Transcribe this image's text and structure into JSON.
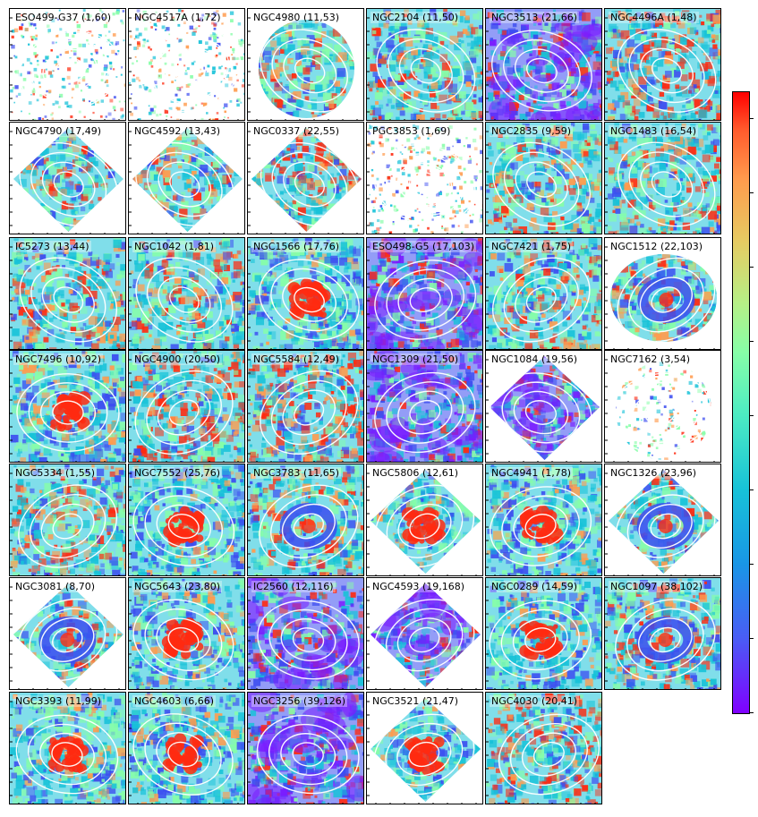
{
  "figure": {
    "panels": [
      {
        "name": "ESO499-G37",
        "values": "(1,60)",
        "style": "sparse",
        "shape": "square"
      },
      {
        "name": "NGC4517A",
        "values": "(1,72)",
        "style": "sparse",
        "shape": "square"
      },
      {
        "name": "NGC4980",
        "values": "(11,53)",
        "style": "cyan",
        "shape": "oval"
      },
      {
        "name": "NGC2104",
        "values": "(11,50)",
        "style": "cyan",
        "shape": "square"
      },
      {
        "name": "NGC3513",
        "values": "(21,66)",
        "style": "blue",
        "shape": "square"
      },
      {
        "name": "NGC4496A",
        "values": "(1,48)",
        "style": "mixed",
        "shape": "square"
      },
      {
        "name": "NGC4790",
        "values": "(17,49)",
        "style": "cyan",
        "shape": "diamond"
      },
      {
        "name": "NGC4592",
        "values": "(13,43)",
        "style": "cyan",
        "shape": "diamond"
      },
      {
        "name": "NGC0337",
        "values": "(22,55)",
        "style": "mixed",
        "shape": "diamond"
      },
      {
        "name": "PGC3853",
        "values": "(1,69)",
        "style": "sparse",
        "shape": "square"
      },
      {
        "name": "NGC2835",
        "values": "(9,59)",
        "style": "cyan",
        "shape": "square"
      },
      {
        "name": "NGC1483",
        "values": "(16,54)",
        "style": "cyan",
        "shape": "square"
      },
      {
        "name": "IC5273",
        "values": "(13,44)",
        "style": "cyan",
        "shape": "square"
      },
      {
        "name": "NGC1042",
        "values": "(1,81)",
        "style": "cyan",
        "shape": "square"
      },
      {
        "name": "NGC1566",
        "values": "(17,76)",
        "style": "redcore",
        "shape": "square"
      },
      {
        "name": "ESO498-G5",
        "values": "(17,103)",
        "style": "blue",
        "shape": "square"
      },
      {
        "name": "NGC7421",
        "values": "(1,75)",
        "style": "cyan",
        "shape": "square"
      },
      {
        "name": "NGC1512",
        "values": "(22,103)",
        "style": "ring",
        "shape": "blob"
      },
      {
        "name": "NGC7496",
        "values": "(10,92)",
        "style": "redcore",
        "shape": "square"
      },
      {
        "name": "NGC4900",
        "values": "(20,50)",
        "style": "mixed",
        "shape": "square"
      },
      {
        "name": "NGC5584",
        "values": "(12,49)",
        "style": "mixed",
        "shape": "square"
      },
      {
        "name": "NGC1309",
        "values": "(21,50)",
        "style": "blue",
        "shape": "square"
      },
      {
        "name": "NGC1084",
        "values": "(19,56)",
        "style": "blue",
        "shape": "diamond"
      },
      {
        "name": "NGC7162",
        "values": "(3,54)",
        "style": "sparse",
        "shape": "oval"
      },
      {
        "name": "NGC5334",
        "values": "(1,55)",
        "style": "cyan",
        "shape": "square"
      },
      {
        "name": "NGC7552",
        "values": "(25,76)",
        "style": "redcore",
        "shape": "square"
      },
      {
        "name": "NGC3783",
        "values": "(11,65)",
        "style": "ring",
        "shape": "square"
      },
      {
        "name": "NGC5806",
        "values": "(12,61)",
        "style": "redcore",
        "shape": "diamond"
      },
      {
        "name": "NGC4941",
        "values": "(1,78)",
        "style": "redcore",
        "shape": "square"
      },
      {
        "name": "NGC1326",
        "values": "(23,96)",
        "style": "ring",
        "shape": "diamond"
      },
      {
        "name": "NGC3081",
        "values": "(8,70)",
        "style": "ring",
        "shape": "diamond"
      },
      {
        "name": "NGC5643",
        "values": "(23,80)",
        "style": "redcore",
        "shape": "square"
      },
      {
        "name": "IC2560",
        "values": "(12,116)",
        "style": "blue",
        "shape": "square"
      },
      {
        "name": "NGC4593",
        "values": "(19,168)",
        "style": "blue",
        "shape": "diamond"
      },
      {
        "name": "NGC0289",
        "values": "(14,59)",
        "style": "redcore",
        "shape": "square"
      },
      {
        "name": "NGC1097",
        "values": "(38,102)",
        "style": "ring",
        "shape": "square"
      },
      {
        "name": "NGC3393",
        "values": "(11,99)",
        "style": "redcore",
        "shape": "square"
      },
      {
        "name": "NGC4603",
        "values": "(6,66)",
        "style": "redcore",
        "shape": "square"
      },
      {
        "name": "NGC3256",
        "values": "(39,126)",
        "style": "blue",
        "shape": "square"
      },
      {
        "name": "NGC3521",
        "values": "(21,47)",
        "style": "redcore",
        "shape": "diamond"
      },
      {
        "name": "NGC4030",
        "values": "(20,41)",
        "style": "mixed",
        "shape": "square"
      }
    ]
  },
  "colorbar": {
    "colormap": "rainbow",
    "tick_count": 9
  },
  "colors": {
    "red": "#ff2a10",
    "orange": "#ff9b4d",
    "green": "#86fea8",
    "cyan": "#17c2d8",
    "blue": "#3b4cf0",
    "violet": "#7a1dff"
  },
  "chart_data": {
    "type": "heatmap",
    "colormap": "rainbow",
    "layout": {
      "rows": 7,
      "cols": 6
    },
    "panels": [
      {
        "galaxy": "ESO499-G37",
        "values": [
          1,
          60
        ]
      },
      {
        "galaxy": "NGC4517A",
        "values": [
          1,
          72
        ]
      },
      {
        "galaxy": "NGC4980",
        "values": [
          11,
          53
        ]
      },
      {
        "galaxy": "NGC2104",
        "values": [
          11,
          50
        ]
      },
      {
        "galaxy": "NGC3513",
        "values": [
          21,
          66
        ]
      },
      {
        "galaxy": "NGC4496A",
        "values": [
          1,
          48
        ]
      },
      {
        "galaxy": "NGC4790",
        "values": [
          17,
          49
        ]
      },
      {
        "galaxy": "NGC4592",
        "values": [
          13,
          43
        ]
      },
      {
        "galaxy": "NGC0337",
        "values": [
          22,
          55
        ]
      },
      {
        "galaxy": "PGC3853",
        "values": [
          1,
          69
        ]
      },
      {
        "galaxy": "NGC2835",
        "values": [
          9,
          59
        ]
      },
      {
        "galaxy": "NGC1483",
        "values": [
          16,
          54
        ]
      },
      {
        "galaxy": "IC5273",
        "values": [
          13,
          44
        ]
      },
      {
        "galaxy": "NGC1042",
        "values": [
          1,
          81
        ]
      },
      {
        "galaxy": "NGC1566",
        "values": [
          17,
          76
        ]
      },
      {
        "galaxy": "ESO498-G5",
        "values": [
          17,
          103
        ]
      },
      {
        "galaxy": "NGC7421",
        "values": [
          1,
          75
        ]
      },
      {
        "galaxy": "NGC1512",
        "values": [
          22,
          103
        ]
      },
      {
        "galaxy": "NGC7496",
        "values": [
          10,
          92
        ]
      },
      {
        "galaxy": "NGC4900",
        "values": [
          20,
          50
        ]
      },
      {
        "galaxy": "NGC5584",
        "values": [
          12,
          49
        ]
      },
      {
        "galaxy": "NGC1309",
        "values": [
          21,
          50
        ]
      },
      {
        "galaxy": "NGC1084",
        "values": [
          19,
          56
        ]
      },
      {
        "galaxy": "NGC7162",
        "values": [
          3,
          54
        ]
      },
      {
        "galaxy": "NGC5334",
        "values": [
          1,
          55
        ]
      },
      {
        "galaxy": "NGC7552",
        "values": [
          25,
          76
        ]
      },
      {
        "galaxy": "NGC3783",
        "values": [
          11,
          65
        ]
      },
      {
        "galaxy": "NGC5806",
        "values": [
          12,
          61
        ]
      },
      {
        "galaxy": "NGC4941",
        "values": [
          1,
          78
        ]
      },
      {
        "galaxy": "NGC1326",
        "values": [
          23,
          96
        ]
      },
      {
        "galaxy": "NGC3081",
        "values": [
          8,
          70
        ]
      },
      {
        "galaxy": "NGC5643",
        "values": [
          23,
          80
        ]
      },
      {
        "galaxy": "IC2560",
        "values": [
          12,
          116
        ]
      },
      {
        "galaxy": "NGC4593",
        "values": [
          19,
          168
        ]
      },
      {
        "galaxy": "NGC0289",
        "values": [
          14,
          59
        ]
      },
      {
        "galaxy": "NGC1097",
        "values": [
          38,
          102
        ]
      },
      {
        "galaxy": "NGC3393",
        "values": [
          11,
          99
        ]
      },
      {
        "galaxy": "NGC4603",
        "values": [
          6,
          66
        ]
      },
      {
        "galaxy": "NGC3256",
        "values": [
          39,
          126
        ]
      },
      {
        "galaxy": "NGC3521",
        "values": [
          21,
          47
        ]
      },
      {
        "galaxy": "NGC4030",
        "values": [
          20,
          41
        ]
      }
    ]
  }
}
